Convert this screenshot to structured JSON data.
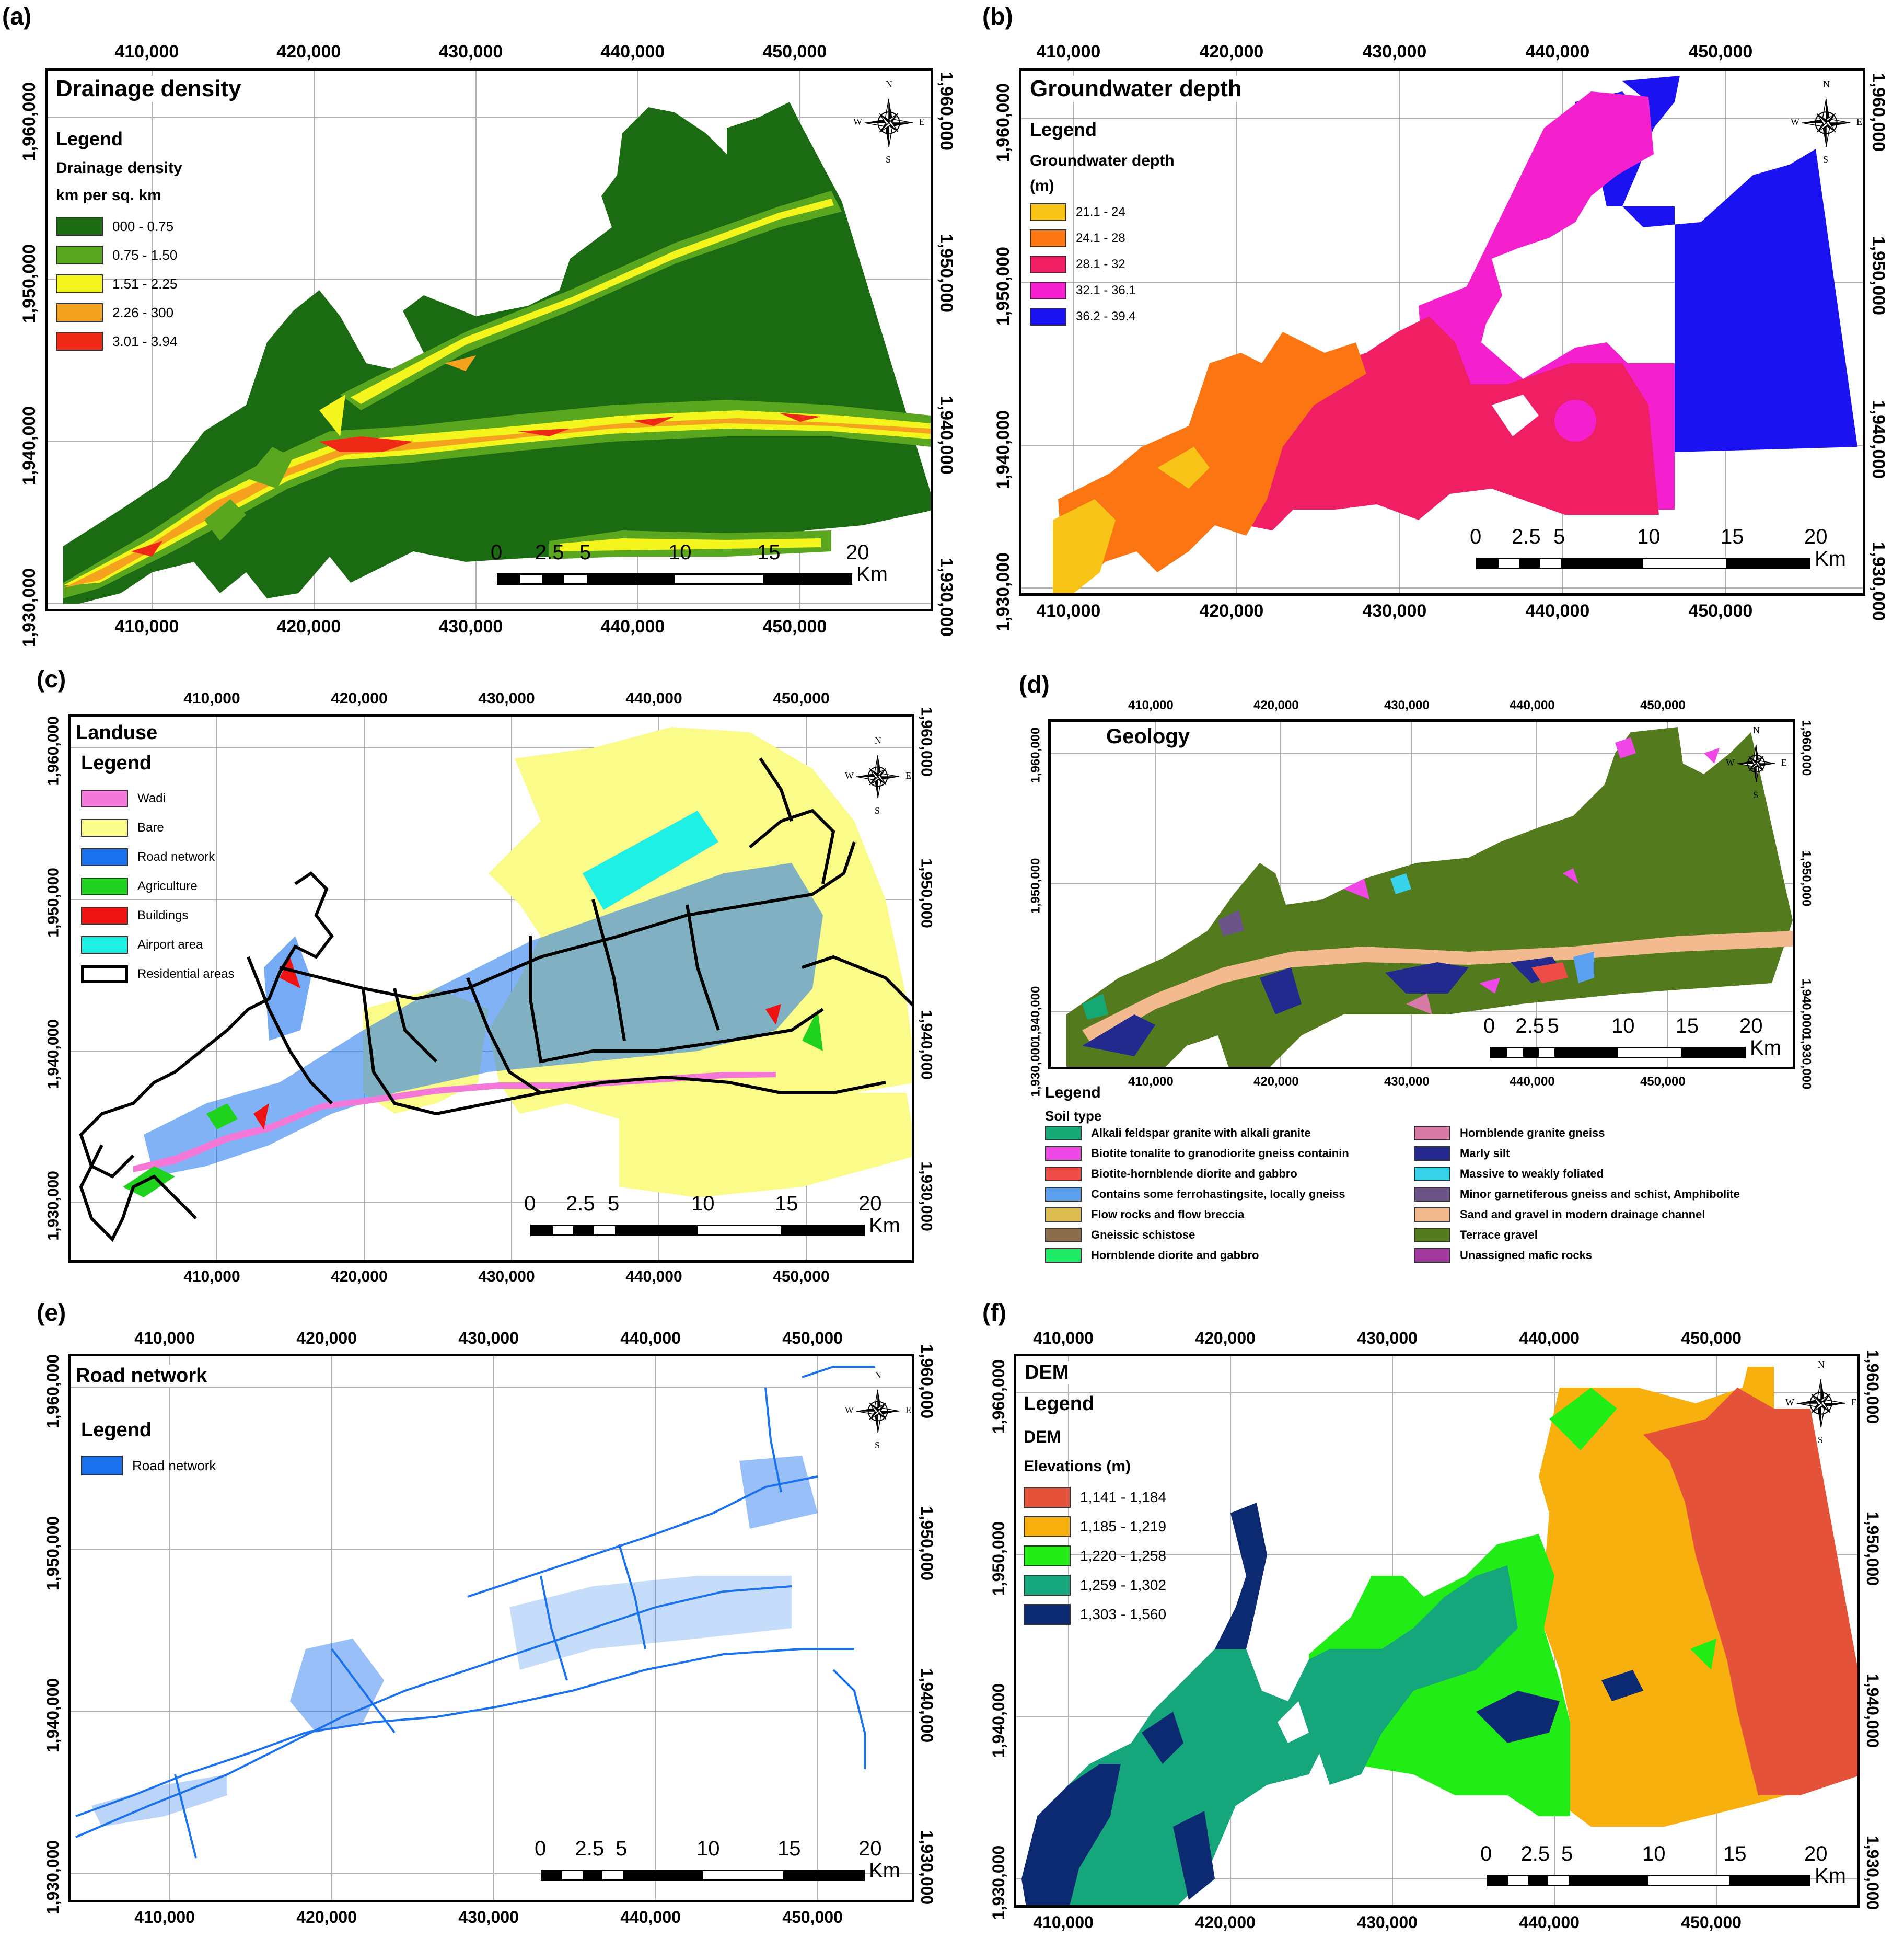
{
  "panels": {
    "a": {
      "label": "(a)",
      "title": "Drainage density",
      "legend_heading": "Legend",
      "legend_subtitle_1": "Drainage density",
      "legend_subtitle_2": "km per sq. km",
      "legend_items": [
        {
          "label": "000 -  0.75",
          "color": "#1a6b12"
        },
        {
          "label": "0.75 -  1.50",
          "color": "#5aa61e"
        },
        {
          "label": "1.51 - 2.25",
          "color": "#f5f51e"
        },
        {
          "label": "2.26 - 300",
          "color": "#f5a21e"
        },
        {
          "label": "3.01 - 3.94",
          "color": "#ee2a16"
        }
      ]
    },
    "b": {
      "label": "(b)",
      "title": "Groundwater depth",
      "legend_heading": "Legend",
      "legend_subtitle_1": "Groundwater depth",
      "legend_subtitle_2": "(m)",
      "legend_items": [
        {
          "label": "21.1 - 24",
          "color": "#f8c418"
        },
        {
          "label": "24.1 - 28",
          "color": "#fb7612"
        },
        {
          "label": "28.1 - 32",
          "color": "#f01e62"
        },
        {
          "label": "32.1 - 36.1",
          "color": "#f420ce"
        },
        {
          "label": "36.2 - 39.4",
          "color": "#1a12f0"
        }
      ]
    },
    "c": {
      "label": "(c)",
      "title": "Landuse",
      "legend_heading": "Legend",
      "legend_items": [
        {
          "label": "Wadi",
          "color": "#f478d8"
        },
        {
          "label": "Bare",
          "color": "#fbfb8a"
        },
        {
          "label": "Road network",
          "color": "#1b72ee"
        },
        {
          "label": "Agriculture",
          "color": "#1ed21e"
        },
        {
          "label": "Buildings",
          "color": "#ee1212"
        },
        {
          "label": "Airport area",
          "color": "#1ef0e6"
        },
        {
          "label": "Residential areas",
          "color": "#ffffff"
        }
      ]
    },
    "d": {
      "label": "(d)",
      "title": "Geology",
      "legend_heading": "Legend",
      "legend_subtitle_1": "Soil type",
      "legend_items_left": [
        {
          "label": "Alkali feldspar granite with alkali granite",
          "color": "#15a874"
        },
        {
          "label": "Biotite tonalite to granodiorite gneiss containin",
          "color": "#f048e6"
        },
        {
          "label": "Biotite-hornblende diorite and gabbro",
          "color": "#ee4c46"
        },
        {
          "label": "Contains some ferrohastingsite, locally gneiss",
          "color": "#5aa0ee"
        },
        {
          "label": "Flow rocks and flow breccia",
          "color": "#ddbd52"
        },
        {
          "label": "Gneissic schistose",
          "color": "#8a6c4c"
        },
        {
          "label": "Hornblende diorite and gabbro",
          "color": "#1eea66"
        }
      ],
      "legend_items_right": [
        {
          "label": "Hornblende granite gneiss",
          "color": "#d87aa6"
        },
        {
          "label": "Marly silt",
          "color": "#24298e"
        },
        {
          "label": "Massive to weakly foliated",
          "color": "#38d2ea"
        },
        {
          "label": "Minor garnetiferous gneiss and schist, Amphibolite",
          "color": "#6c5488"
        },
        {
          "label": "Sand and gravel in modern drainage channel",
          "color": "#f2ba8e"
        },
        {
          "label": "Terrace gravel",
          "color": "#547a1e"
        },
        {
          "label": "Unassigned mafic rocks",
          "color": "#a23a9e"
        }
      ]
    },
    "e": {
      "label": "(e)",
      "title": "Road network",
      "legend_heading": "Legend",
      "legend_items": [
        {
          "label": "Road network",
          "color": "#1b72ee"
        }
      ]
    },
    "f": {
      "label": "(f)",
      "title": "DEM",
      "legend_heading": "Legend",
      "legend_subtitle_1": "DEM",
      "legend_subtitle_2": "Elevations (m)",
      "legend_items": [
        {
          "label": "1,141 - 1,184",
          "color": "#e4523a"
        },
        {
          "label": "1,185 - 1,219",
          "color": "#f7b00e"
        },
        {
          "label": "1,220 - 1,258",
          "color": "#22ec16"
        },
        {
          "label": "1,259 - 1,302",
          "color": "#16a67c"
        },
        {
          "label": "1,303 - 1,560",
          "color": "#0c2a72"
        }
      ]
    }
  },
  "axes": {
    "x_ticks": [
      "410,000",
      "420,000",
      "430,000",
      "440,000",
      "450,000"
    ],
    "y_ticks": [
      "1,960,000",
      "1,950,000",
      "1,940,000",
      "1,930,000"
    ]
  },
  "scale_bar": {
    "labels": [
      "0",
      "2.5",
      "5",
      "10",
      "15",
      "20"
    ],
    "unit": "Km"
  },
  "compass": {
    "n": "N",
    "s": "S",
    "e": "E",
    "w": "W"
  }
}
